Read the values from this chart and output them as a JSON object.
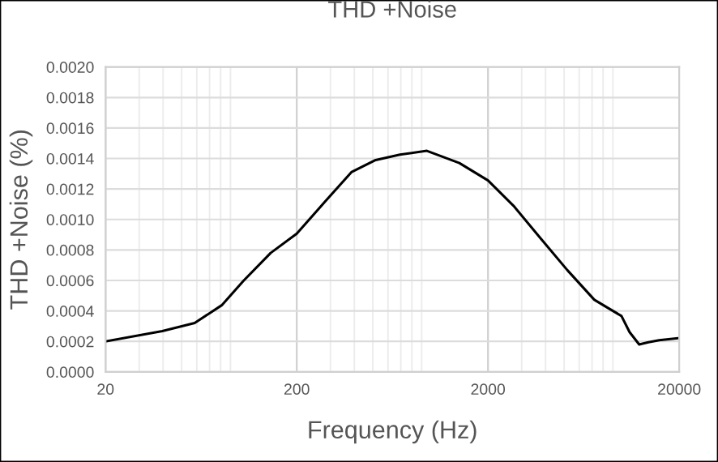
{
  "chart_data": {
    "type": "line",
    "title": "THD +Noise",
    "xlabel": "Frequency (Hz)",
    "ylabel": "THD +Noise (%)",
    "log": "x",
    "grid": true,
    "marker": "none",
    "line_style": "solid",
    "xlim": [
      20,
      20000
    ],
    "xticks": [
      20,
      200,
      2000,
      20000
    ],
    "ylim": [
      0,
      0.002
    ],
    "yticks": [
      {
        "value": 0,
        "label": "0.0000"
      },
      {
        "value": 0.0002,
        "label": "0.0002"
      },
      {
        "value": 0.0004,
        "label": "0.0004"
      },
      {
        "value": 0.0006,
        "label": "0.0006"
      },
      {
        "value": 0.0008,
        "label": "0.0008"
      },
      {
        "value": 0.001,
        "label": "0.0010"
      },
      {
        "value": 0.0012,
        "label": "0.0012"
      },
      {
        "value": 0.0014,
        "label": "0.0014"
      },
      {
        "value": 0.0016,
        "label": "0.0016"
      },
      {
        "value": 0.0018,
        "label": "0.0018"
      },
      {
        "value": 0.002,
        "label": "0.0020"
      }
    ],
    "x": [
      20,
      39.6,
      58.5,
      81,
      105,
      146,
      200,
      278,
      386,
      517,
      693,
      958,
      1416,
      2000,
      2718,
      3758,
      5203,
      7197,
      8470,
      9977,
      11000,
      12350,
      13800,
      15700,
      20000
    ],
    "series": [
      {
        "color": "#000000",
        "values": [
          0.0002,
          0.000268,
          0.000321,
          0.000437,
          0.000596,
          0.00078,
          0.000907,
          0.00111,
          0.00131,
          0.00139,
          0.001425,
          0.00145,
          0.00137,
          0.001256,
          0.00109,
          0.000878,
          0.000667,
          0.000473,
          0.00042,
          0.000367,
          0.000261,
          0.00018,
          0.000194,
          0.000208,
          0.000222
        ]
      }
    ]
  }
}
